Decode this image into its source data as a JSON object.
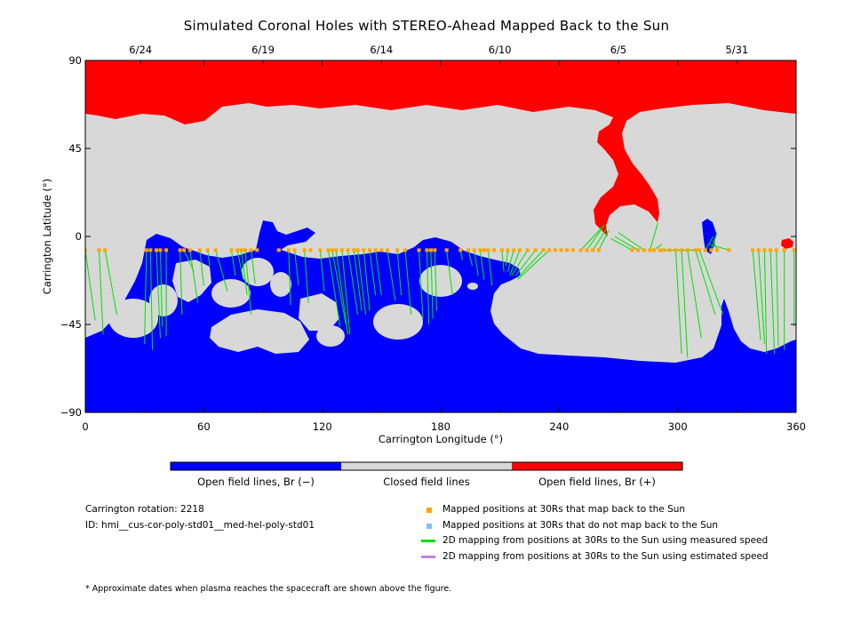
{
  "chart_data": {
    "type": "scatter",
    "title": "Simulated Coronal Holes with STEREO-Ahead Mapped Back to the Sun",
    "xlabel": "Carrington Longitude (°)",
    "ylabel": "Carrington Latitude (°)",
    "xlim": [
      0,
      360
    ],
    "ylim": [
      -90,
      90
    ],
    "x_ticks": [
      "0",
      "60",
      "120",
      "180",
      "240",
      "300",
      "360"
    ],
    "y_ticks": [
      "−90",
      "−45",
      "0",
      "45",
      "90"
    ],
    "top_axis_dates": [
      {
        "label": "6/24",
        "lon": 28
      },
      {
        "label": "6/19",
        "lon": 90
      },
      {
        "label": "6/14",
        "lon": 150
      },
      {
        "label": "6/10",
        "lon": 210
      },
      {
        "label": "6/5",
        "lon": 270
      },
      {
        "label": "5/31",
        "lon": 330
      }
    ],
    "mapped_latitude": -7,
    "mapped_points_lon": [
      0,
      7,
      10,
      31,
      33,
      36,
      38,
      41,
      48,
      50,
      53,
      58,
      62,
      66,
      74,
      77,
      79,
      81,
      84,
      87,
      98,
      103,
      106,
      111,
      114,
      119,
      123,
      125,
      127,
      130,
      133,
      136,
      138,
      141,
      144,
      147,
      150,
      153,
      158,
      162,
      169,
      173,
      175,
      177,
      183,
      190,
      194,
      197,
      200,
      202,
      204,
      207,
      211,
      214,
      217,
      220,
      224,
      228,
      232,
      235,
      238,
      241,
      244,
      247,
      251,
      254,
      257,
      260,
      277,
      280,
      283,
      286,
      288,
      291,
      293,
      296,
      299,
      302,
      305,
      309,
      311,
      314,
      317,
      320,
      326,
      338,
      341,
      344,
      347,
      350,
      354,
      359
    ],
    "field_lines": [
      [
        0,
        -7,
        5,
        -43
      ],
      [
        7,
        -7,
        9,
        -50
      ],
      [
        10,
        -7,
        16,
        -40
      ],
      [
        31,
        -7,
        30,
        -55
      ],
      [
        33,
        -7,
        34,
        -58
      ],
      [
        36,
        -7,
        38,
        -52
      ],
      [
        38,
        -7,
        39,
        -46
      ],
      [
        41,
        -7,
        41,
        -51
      ],
      [
        48,
        -7,
        49,
        -40
      ],
      [
        50,
        -7,
        55,
        -18
      ],
      [
        53,
        -7,
        57,
        -34
      ],
      [
        58,
        -7,
        60,
        -25
      ],
      [
        62,
        -7,
        63,
        -15
      ],
      [
        66,
        -7,
        72,
        -28
      ],
      [
        74,
        -7,
        76,
        -20
      ],
      [
        77,
        -7,
        80,
        -22
      ],
      [
        79,
        -7,
        82,
        -30
      ],
      [
        81,
        -7,
        84,
        -40
      ],
      [
        84,
        -7,
        86,
        -24
      ],
      [
        103,
        -7,
        104,
        -35
      ],
      [
        106,
        -7,
        108,
        -25
      ],
      [
        111,
        -7,
        113,
        -34
      ],
      [
        119,
        -7,
        121,
        -28
      ],
      [
        123,
        -7,
        129,
        -46
      ],
      [
        125,
        -7,
        132,
        -45
      ],
      [
        127,
        -7,
        133,
        -50
      ],
      [
        130,
        -7,
        134,
        -50
      ],
      [
        133,
        -7,
        138,
        -40
      ],
      [
        136,
        -7,
        140,
        -38
      ],
      [
        138,
        -7,
        142,
        -40
      ],
      [
        141,
        -7,
        144,
        -38
      ],
      [
        144,
        -7,
        147,
        -30
      ],
      [
        147,
        -7,
        150,
        -30
      ],
      [
        153,
        -7,
        157,
        -33
      ],
      [
        158,
        -7,
        160,
        -30
      ],
      [
        162,
        -7,
        165,
        -40
      ],
      [
        169,
        -7,
        171,
        -42
      ],
      [
        173,
        -7,
        174,
        -45
      ],
      [
        175,
        -7,
        176,
        -42
      ],
      [
        177,
        -7,
        178,
        -38
      ],
      [
        183,
        -7,
        186,
        -30
      ],
      [
        190,
        -7,
        191,
        -12
      ],
      [
        194,
        -7,
        196,
        -15
      ],
      [
        197,
        -7,
        199,
        -20
      ],
      [
        200,
        -7,
        202,
        -22
      ],
      [
        204,
        -7,
        206,
        -25
      ],
      [
        211,
        -7,
        212,
        -18
      ],
      [
        214,
        -7,
        213,
        -15
      ],
      [
        217,
        -7,
        214,
        -18
      ],
      [
        220,
        -7,
        215,
        -20
      ],
      [
        224,
        -7,
        216,
        -20
      ],
      [
        228,
        -7,
        218,
        -20
      ],
      [
        232,
        -7,
        219,
        -21
      ],
      [
        235,
        -7,
        219,
        -22
      ],
      [
        251,
        -7,
        262,
        5
      ],
      [
        254,
        -7,
        263,
        6
      ],
      [
        257,
        -7,
        264,
        4
      ],
      [
        260,
        -7,
        265,
        3
      ],
      [
        277,
        -7,
        266,
        -1
      ],
      [
        280,
        -7,
        268,
        0
      ],
      [
        283,
        -7,
        270,
        2
      ],
      [
        286,
        -7,
        290,
        7
      ],
      [
        288,
        -7,
        292,
        -4
      ],
      [
        291,
        -7,
        309,
        -7
      ],
      [
        299,
        -7,
        302,
        -60
      ],
      [
        302,
        -7,
        305,
        -62
      ],
      [
        305,
        -7,
        312,
        -52
      ],
      [
        309,
        -7,
        319,
        -40
      ],
      [
        311,
        -7,
        323,
        -40
      ],
      [
        314,
        -7,
        318,
        0
      ],
      [
        317,
        -7,
        320,
        2
      ],
      [
        320,
        -7,
        318,
        -2
      ],
      [
        326,
        -7,
        316,
        -4
      ],
      [
        338,
        -7,
        342,
        -53
      ],
      [
        341,
        -7,
        344,
        -55
      ],
      [
        344,
        -7,
        345,
        -60
      ],
      [
        347,
        -7,
        349,
        -60
      ],
      [
        350,
        -7,
        351,
        -56
      ],
      [
        354,
        -7,
        354,
        -58
      ],
      [
        359,
        -7,
        359,
        -46
      ]
    ],
    "colors": {
      "open_negative": "#0000ff",
      "closed": "#d8d8d8",
      "open_positive": "#ff0000",
      "mapped": "#ffa500",
      "unmapped": "#80c0f0",
      "measured": "#00e000",
      "estimated": "#c080f0"
    }
  },
  "colorbar": {
    "labels": [
      "Open field lines, Br (−)",
      "Closed field lines",
      "Open field lines, Br (+)"
    ]
  },
  "info": {
    "carrington_rotation": "Carrington rotation: 2218",
    "id": "ID: hmi__cus-cor-poly-std01__med-hel-poly-std01"
  },
  "legend": [
    {
      "label": "Mapped positions at 30Rs that map back to the Sun",
      "symbol": "square",
      "color": "#ffa500"
    },
    {
      "label": "Mapped positions at 30Rs that do not map back to the Sun",
      "symbol": "square",
      "color": "#80c0f0"
    },
    {
      "label": "2D mapping from positions at 30Rs to the Sun using measured speed",
      "symbol": "line",
      "color": "#00e000"
    },
    {
      "label": "2D mapping from positions at 30Rs to the Sun using estimated speed",
      "symbol": "line",
      "color": "#c080f0"
    }
  ],
  "footnote": "* Approximate dates when plasma reaches the spacecraft are shown above the figure."
}
